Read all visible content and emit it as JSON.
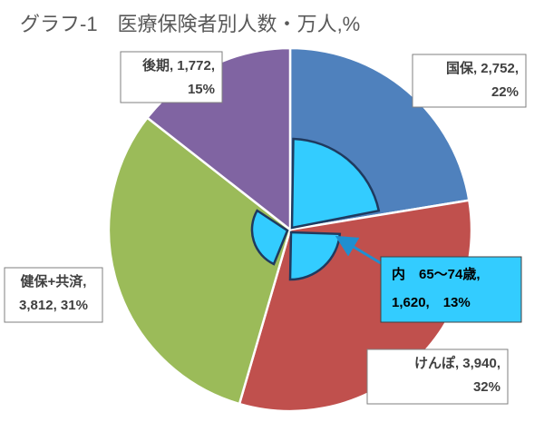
{
  "chart_data": {
    "type": "pie",
    "title": "グラフ-1　医療保険者別人数・万人,%",
    "categories": [
      "国保",
      "けんぽ",
      "健保+共済",
      "後期"
    ],
    "values": [
      2752,
      3940,
      3812,
      1772
    ],
    "colors": [
      "#4f81bd",
      "#c0504d",
      "#9bbb59",
      "#8064a2"
    ],
    "data_labels": [
      [
        "国保, 2,752,",
        "22%"
      ],
      [
        "けんぽ, 3,940,",
        "32%"
      ],
      [
        "健保+共済,",
        "3,812, 31%"
      ],
      [
        "後期, 1,772,",
        "15%"
      ]
    ],
    "annotation": [
      "内　65～74歳,",
      "1,620,　13%"
    ]
  }
}
